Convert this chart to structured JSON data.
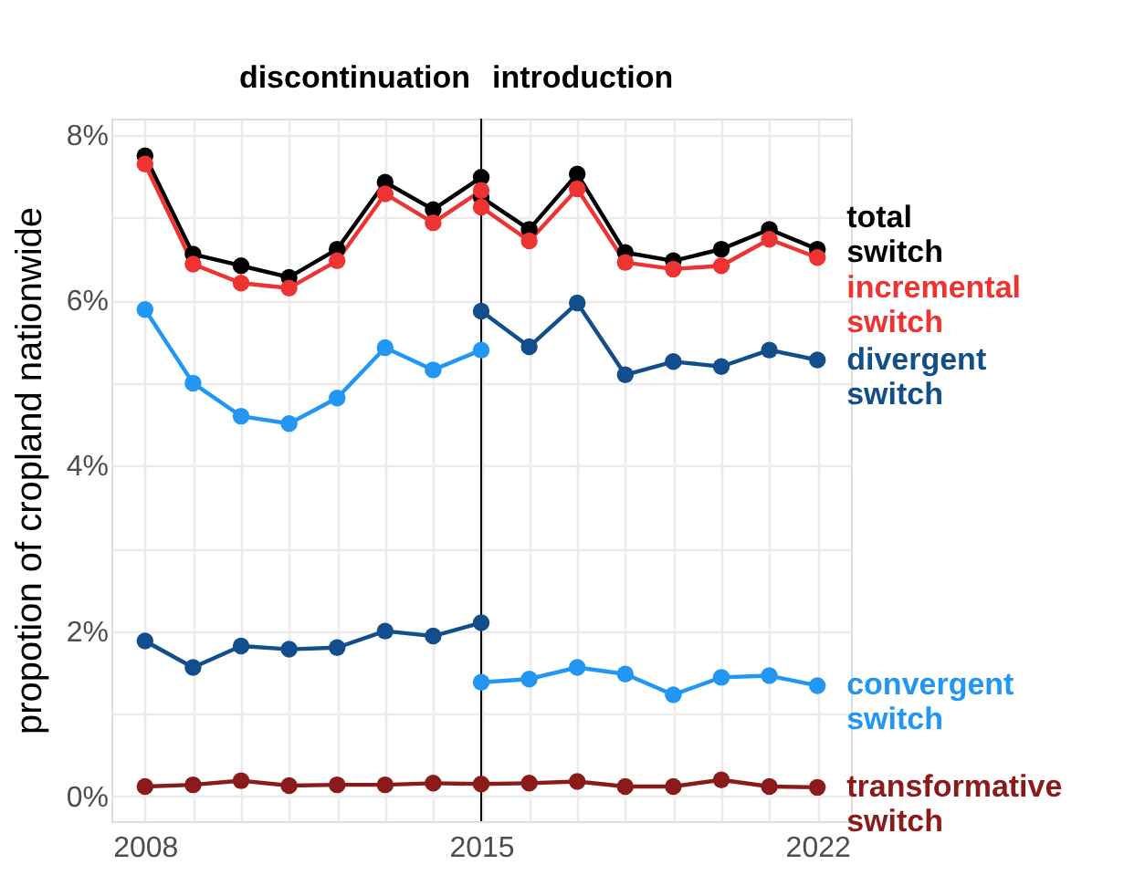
{
  "chart_data": {
    "type": "line",
    "ylabel": "propotion of cropland nationwide",
    "annotations": [
      "discontinuation",
      "introduction"
    ],
    "ref_lines": [
      {
        "axis": "x",
        "value": 2015,
        "color": "#000000"
      }
    ],
    "xlim": [
      2007.3,
      2022.7
    ],
    "ylim": [
      -0.3,
      8.2
    ],
    "xticks": [
      2008,
      {
        "value": 2009,
        "label": null
      },
      {
        "value": 2010,
        "label": null
      },
      {
        "value": 2011,
        "label": null
      },
      {
        "value": 2012,
        "label": null
      },
      {
        "value": 2013,
        "label": null
      },
      {
        "value": 2014,
        "label": null
      },
      2015,
      {
        "value": 2016,
        "label": null
      },
      {
        "value": 2017,
        "label": null
      },
      {
        "value": 2018,
        "label": null
      },
      {
        "value": 2019,
        "label": null
      },
      {
        "value": 2020,
        "label": null
      },
      {
        "value": 2021,
        "label": null
      },
      2022
    ],
    "yticks": [
      {
        "value": 0,
        "label": "0%"
      },
      {
        "value": 1,
        "label": null
      },
      {
        "value": 2,
        "label": "2%"
      },
      {
        "value": 3,
        "label": null
      },
      {
        "value": 4,
        "label": "4%"
      },
      {
        "value": 5,
        "label": null
      },
      {
        "value": 6,
        "label": "6%"
      },
      {
        "value": 7,
        "label": null
      },
      {
        "value": 8,
        "label": "8%"
      }
    ],
    "grid": true,
    "marker": "circle",
    "line_style": "solid",
    "series": [
      {
        "color": "#000000",
        "x": [
          2008,
          2009,
          2010,
          2011,
          2012,
          2013,
          2014,
          2015
        ],
        "values": [
          7.75,
          6.56,
          6.42,
          6.28,
          6.62,
          7.43,
          7.1,
          7.49
        ]
      },
      {
        "name": "total switch",
        "color": "#000000",
        "x": [
          2015,
          2016,
          2017,
          2018,
          2019,
          2020,
          2021,
          2022
        ],
        "values": [
          7.25,
          6.86,
          7.53,
          6.58,
          6.48,
          6.62,
          6.86,
          6.62
        ]
      },
      {
        "color": "#ee3333",
        "x": [
          2008,
          2009,
          2010,
          2011,
          2012,
          2013,
          2014,
          2015
        ],
        "values": [
          7.65,
          6.44,
          6.21,
          6.15,
          6.48,
          7.29,
          6.94,
          7.33
        ]
      },
      {
        "name": "incremental switch",
        "color": "#ee3333",
        "x": [
          2015,
          2016,
          2017,
          2018,
          2019,
          2020,
          2021,
          2022
        ],
        "values": [
          7.13,
          6.72,
          7.35,
          6.46,
          6.38,
          6.42,
          6.74,
          6.52
        ]
      },
      {
        "color": "#114e8b",
        "x": [
          2008,
          2009,
          2010,
          2011,
          2012,
          2013,
          2014,
          2015
        ],
        "values": [
          1.88,
          1.56,
          1.82,
          1.78,
          1.8,
          2.0,
          1.94,
          2.1
        ]
      },
      {
        "name": "divergent switch",
        "color": "#114e8b",
        "x": [
          2015,
          2016,
          2017,
          2018,
          2019,
          2020,
          2021,
          2022
        ],
        "values": [
          5.87,
          5.44,
          5.97,
          5.1,
          5.26,
          5.2,
          5.4,
          5.28
        ]
      },
      {
        "color": "#2196f3",
        "x": [
          2008,
          2009,
          2010,
          2011,
          2012,
          2013,
          2014,
          2015
        ],
        "values": [
          5.89,
          5.0,
          4.6,
          4.51,
          4.82,
          5.43,
          5.16,
          5.4
        ]
      },
      {
        "name": "convergent switch",
        "color": "#2196f3",
        "x": [
          2015,
          2016,
          2017,
          2018,
          2019,
          2020,
          2021,
          2022
        ],
        "values": [
          1.38,
          1.42,
          1.56,
          1.48,
          1.23,
          1.44,
          1.46,
          1.34
        ]
      },
      {
        "name": "transformative switch",
        "color": "#8b1a1a",
        "x": [
          2008,
          2009,
          2010,
          2011,
          2012,
          2013,
          2014,
          2015,
          2016,
          2017,
          2018,
          2019,
          2020,
          2021,
          2022
        ],
        "values": [
          0.12,
          0.14,
          0.19,
          0.13,
          0.14,
          0.14,
          0.16,
          0.15,
          0.16,
          0.18,
          0.12,
          0.12,
          0.2,
          0.12,
          0.11
        ]
      }
    ]
  }
}
